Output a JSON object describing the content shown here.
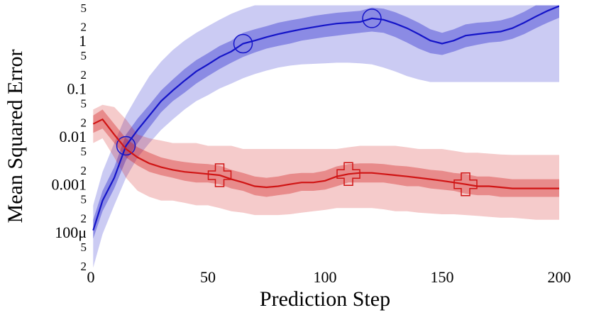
{
  "chart_data": {
    "type": "line",
    "x_label": "Prediction Step",
    "y_label": "Mean Squared Error",
    "log_y": true,
    "xlim": [
      0,
      200
    ],
    "ylim": [
      1e-05,
      6
    ],
    "xticks": [
      0,
      50,
      100,
      150,
      200
    ],
    "yticks": [
      {
        "value": 2e-05,
        "label": "2"
      },
      {
        "value": 5e-05,
        "label": "5"
      },
      {
        "value": 0.0001,
        "label": "100μ"
      },
      {
        "value": 0.0002,
        "label": "2"
      },
      {
        "value": 0.0005,
        "label": "5"
      },
      0.001,
      {
        "value": 0.002,
        "label": "2"
      },
      {
        "value": 0.005,
        "label": "5"
      },
      0.01,
      {
        "value": 0.02,
        "label": "2"
      },
      {
        "value": 0.05,
        "label": "5"
      },
      0.1,
      {
        "value": 0.2,
        "label": "2"
      },
      {
        "value": 0.5,
        "label": "5"
      },
      1,
      2,
      5
    ],
    "x": [
      1,
      5,
      10,
      15,
      20,
      25,
      30,
      35,
      40,
      45,
      50,
      55,
      60,
      65,
      70,
      75,
      80,
      85,
      90,
      95,
      100,
      105,
      110,
      115,
      120,
      125,
      130,
      135,
      140,
      145,
      150,
      155,
      160,
      165,
      170,
      175,
      180,
      185,
      190,
      195,
      200
    ],
    "series": [
      {
        "color": "#1414c8",
        "marker": "circle",
        "marker_x": [
          15,
          65,
          120
        ],
        "values": [
          0.00012,
          0.0005,
          0.0015,
          0.007,
          0.015,
          0.03,
          0.06,
          0.1,
          0.16,
          0.25,
          0.35,
          0.5,
          0.65,
          0.95,
          1.1,
          1.3,
          1.5,
          1.7,
          1.9,
          2.1,
          2.3,
          2.5,
          2.6,
          2.7,
          3.2,
          3.0,
          2.5,
          2.0,
          1.5,
          1.1,
          0.95,
          1.1,
          1.4,
          1.5,
          1.6,
          1.7,
          2.0,
          2.6,
          3.5,
          4.6,
          5.8
        ],
        "lower_inner": [
          8e-05,
          0.0003,
          0.0009,
          0.0035,
          0.008,
          0.017,
          0.035,
          0.06,
          0.09,
          0.14,
          0.2,
          0.28,
          0.38,
          0.5,
          0.62,
          0.75,
          0.85,
          0.95,
          1.1,
          1.2,
          1.3,
          1.4,
          1.5,
          1.6,
          1.7,
          1.6,
          1.3,
          1.0,
          0.75,
          0.6,
          0.55,
          0.65,
          0.8,
          0.9,
          1,
          1.05,
          1.2,
          1.5,
          2,
          2.6,
          3.3
        ],
        "upper_inner": [
          0.0002,
          0.0008,
          0.0025,
          0.012,
          0.026,
          0.05,
          0.1,
          0.17,
          0.28,
          0.43,
          0.6,
          0.85,
          1.1,
          1.6,
          1.9,
          2.2,
          2.6,
          2.9,
          3.2,
          3.6,
          3.9,
          4.2,
          4.4,
          4.6,
          5.4,
          5.1,
          4.3,
          3.4,
          2.6,
          1.9,
          1.6,
          1.9,
          2.4,
          2.6,
          2.7,
          2.9,
          3.4,
          4.4,
          6,
          6,
          6
        ],
        "lower_outer": [
          2e-05,
          0.0001,
          0.0004,
          0.0015,
          0.004,
          0.008,
          0.015,
          0.025,
          0.04,
          0.06,
          0.08,
          0.11,
          0.14,
          0.18,
          0.22,
          0.26,
          0.3,
          0.33,
          0.35,
          0.36,
          0.37,
          0.38,
          0.38,
          0.37,
          0.35,
          0.3,
          0.25,
          0.2,
          0.17,
          0.15,
          0.15,
          0.15,
          0.15,
          0.15,
          0.15,
          0.15,
          0.15,
          0.15,
          0.15,
          0.15,
          0.15
        ],
        "upper_outer": [
          0.0004,
          0.002,
          0.008,
          0.03,
          0.08,
          0.2,
          0.4,
          0.7,
          1.1,
          1.6,
          2.2,
          3,
          4,
          5,
          6,
          6,
          6,
          6,
          6,
          6,
          6,
          6,
          6,
          6,
          6,
          6,
          6,
          6,
          6,
          6,
          6,
          6,
          6,
          6,
          6,
          6,
          6,
          6,
          6,
          6,
          6
        ]
      },
      {
        "color": "#d01414",
        "marker": "plus",
        "marker_x": [
          55,
          110,
          160
        ],
        "values": [
          0.02,
          0.025,
          0.012,
          0.006,
          0.004,
          0.003,
          0.0025,
          0.0022,
          0.002,
          0.0019,
          0.0018,
          0.0017,
          0.0014,
          0.0012,
          0.001,
          0.00095,
          0.001,
          0.0011,
          0.0012,
          0.0012,
          0.0013,
          0.0016,
          0.0018,
          0.0019,
          0.0019,
          0.0018,
          0.0017,
          0.0016,
          0.0015,
          0.0014,
          0.0013,
          0.0012,
          0.0011,
          0.001,
          0.001,
          0.00095,
          0.0009,
          0.0009,
          0.0009,
          0.0009,
          0.0009
        ],
        "lower_inner": [
          0.013,
          0.016,
          0.008,
          0.004,
          0.0027,
          0.002,
          0.0017,
          0.0015,
          0.0013,
          0.0012,
          0.0012,
          0.0011,
          0.0009,
          0.0008,
          0.00065,
          0.0006,
          0.00065,
          0.0007,
          0.0008,
          0.0008,
          0.00085,
          0.001,
          0.0012,
          0.0012,
          0.0012,
          0.0012,
          0.0011,
          0.001,
          0.001,
          0.0009,
          0.00085,
          0.0008,
          0.0007,
          0.00065,
          0.00065,
          0.0006,
          0.0006,
          0.0006,
          0.0006,
          0.0006,
          0.0006
        ],
        "upper_inner": [
          0.03,
          0.04,
          0.02,
          0.01,
          0.0065,
          0.005,
          0.004,
          0.0035,
          0.0032,
          0.003,
          0.0029,
          0.0027,
          0.0022,
          0.0019,
          0.0016,
          0.0015,
          0.0016,
          0.0018,
          0.0019,
          0.0019,
          0.0021,
          0.0026,
          0.0029,
          0.003,
          0.003,
          0.0029,
          0.0027,
          0.0026,
          0.0024,
          0.0022,
          0.0021,
          0.0019,
          0.0018,
          0.0016,
          0.0016,
          0.0015,
          0.0014,
          0.0014,
          0.0014,
          0.0014,
          0.0014
        ],
        "lower_outer": [
          0.008,
          0.01,
          0.004,
          0.0015,
          0.0008,
          0.0006,
          0.0005,
          0.0005,
          0.00045,
          0.0004,
          0.0004,
          0.00035,
          0.0003,
          0.00028,
          0.00025,
          0.00025,
          0.00025,
          0.00026,
          0.00028,
          0.0003,
          0.00032,
          0.00035,
          0.00035,
          0.00035,
          0.00035,
          0.00033,
          0.0003,
          0.0003,
          0.00028,
          0.00027,
          0.00026,
          0.00026,
          0.00025,
          0.00024,
          0.00023,
          0.00022,
          0.00022,
          0.00021,
          0.0002,
          0.0002,
          0.0002
        ],
        "upper_outer": [
          0.04,
          0.05,
          0.045,
          0.025,
          0.012,
          0.01,
          0.009,
          0.008,
          0.008,
          0.008,
          0.007,
          0.007,
          0.007,
          0.006,
          0.006,
          0.006,
          0.006,
          0.006,
          0.006,
          0.006,
          0.006,
          0.006,
          0.0065,
          0.007,
          0.007,
          0.007,
          0.007,
          0.0065,
          0.006,
          0.006,
          0.006,
          0.0055,
          0.005,
          0.005,
          0.0048,
          0.0046,
          0.0045,
          0.0045,
          0.0045,
          0.0045,
          0.0045
        ]
      }
    ]
  }
}
